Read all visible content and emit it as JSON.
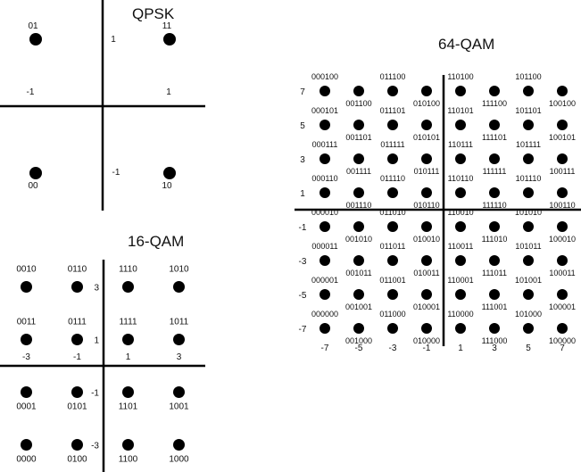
{
  "qpsk": {
    "title": "QPSK",
    "axis_labels": {
      "i_pos": "1",
      "i_neg": "-1",
      "q_pos": "1",
      "q_neg": "-1"
    },
    "points": [
      {
        "i": -1,
        "q": 1,
        "code": "01"
      },
      {
        "i": 1,
        "q": 1,
        "code": "11"
      },
      {
        "i": -1,
        "q": -1,
        "code": "00"
      },
      {
        "i": 1,
        "q": -1,
        "code": "10"
      }
    ]
  },
  "qam16": {
    "title": "16-QAM",
    "i_ticks": [
      {
        "value": -3,
        "label": "-3"
      },
      {
        "value": -1,
        "label": "-1"
      },
      {
        "value": 1,
        "label": "1"
      },
      {
        "value": 3,
        "label": "3"
      }
    ],
    "q_ticks": [
      {
        "value": 3,
        "label": "3"
      },
      {
        "value": 1,
        "label": "1"
      },
      {
        "value": -1,
        "label": "-1"
      },
      {
        "value": -3,
        "label": "-3"
      }
    ],
    "points": [
      {
        "i": -3,
        "q": 3,
        "code": "0010"
      },
      {
        "i": -1,
        "q": 3,
        "code": "0110"
      },
      {
        "i": 1,
        "q": 3,
        "code": "1110"
      },
      {
        "i": 3,
        "q": 3,
        "code": "1010"
      },
      {
        "i": -3,
        "q": 1,
        "code": "0011"
      },
      {
        "i": -1,
        "q": 1,
        "code": "0111"
      },
      {
        "i": 1,
        "q": 1,
        "code": "1111"
      },
      {
        "i": 3,
        "q": 1,
        "code": "1011"
      },
      {
        "i": -3,
        "q": -1,
        "code": "0001"
      },
      {
        "i": -1,
        "q": -1,
        "code": "0101"
      },
      {
        "i": 1,
        "q": -1,
        "code": "1101"
      },
      {
        "i": 3,
        "q": -1,
        "code": "1001"
      },
      {
        "i": -3,
        "q": -3,
        "code": "0000"
      },
      {
        "i": -1,
        "q": -3,
        "code": "0100"
      },
      {
        "i": 1,
        "q": -3,
        "code": "1100"
      },
      {
        "i": 3,
        "q": -3,
        "code": "1000"
      }
    ]
  },
  "qam64": {
    "title": "64-QAM",
    "i_ticks": [
      {
        "value": -7,
        "label": "-7"
      },
      {
        "value": -5,
        "label": "-5"
      },
      {
        "value": -3,
        "label": "-3"
      },
      {
        "value": -1,
        "label": "-1"
      },
      {
        "value": 1,
        "label": "1"
      },
      {
        "value": 3,
        "label": "3"
      },
      {
        "value": 5,
        "label": "5"
      },
      {
        "value": 7,
        "label": "7"
      }
    ],
    "q_ticks": [
      {
        "value": 7,
        "label": "7"
      },
      {
        "value": 5,
        "label": "5"
      },
      {
        "value": 3,
        "label": "3"
      },
      {
        "value": 1,
        "label": "1"
      },
      {
        "value": -1,
        "label": "-1"
      },
      {
        "value": -3,
        "label": "-3"
      },
      {
        "value": -5,
        "label": "-5"
      },
      {
        "value": -7,
        "label": "-7"
      }
    ],
    "rows": [
      {
        "q": 7,
        "codes": [
          "000100",
          "001100",
          "011100",
          "010100",
          "110100",
          "111100",
          "101100",
          "100100"
        ]
      },
      {
        "q": 5,
        "codes": [
          "000101",
          "001101",
          "011101",
          "010101",
          "110101",
          "111101",
          "101101",
          "100101"
        ]
      },
      {
        "q": 3,
        "codes": [
          "000111",
          "001111",
          "011111",
          "010111",
          "110111",
          "111111",
          "101111",
          "100111"
        ]
      },
      {
        "q": 1,
        "codes": [
          "000110",
          "001110",
          "011110",
          "010110",
          "110110",
          "111110",
          "101110",
          "100110"
        ]
      },
      {
        "q": -1,
        "codes": [
          "000010",
          "001010",
          "011010",
          "010010",
          "110010",
          "111010",
          "101010",
          "100010"
        ]
      },
      {
        "q": -3,
        "codes": [
          "000011",
          "001011",
          "011011",
          "010011",
          "110011",
          "111011",
          "101011",
          "100011"
        ]
      },
      {
        "q": -5,
        "codes": [
          "000001",
          "001001",
          "011001",
          "010001",
          "110001",
          "111001",
          "101001",
          "100001"
        ]
      },
      {
        "q": -7,
        "codes": [
          "000000",
          "001000",
          "011000",
          "010000",
          "110000",
          "111000",
          "101000",
          "100000"
        ]
      }
    ]
  }
}
